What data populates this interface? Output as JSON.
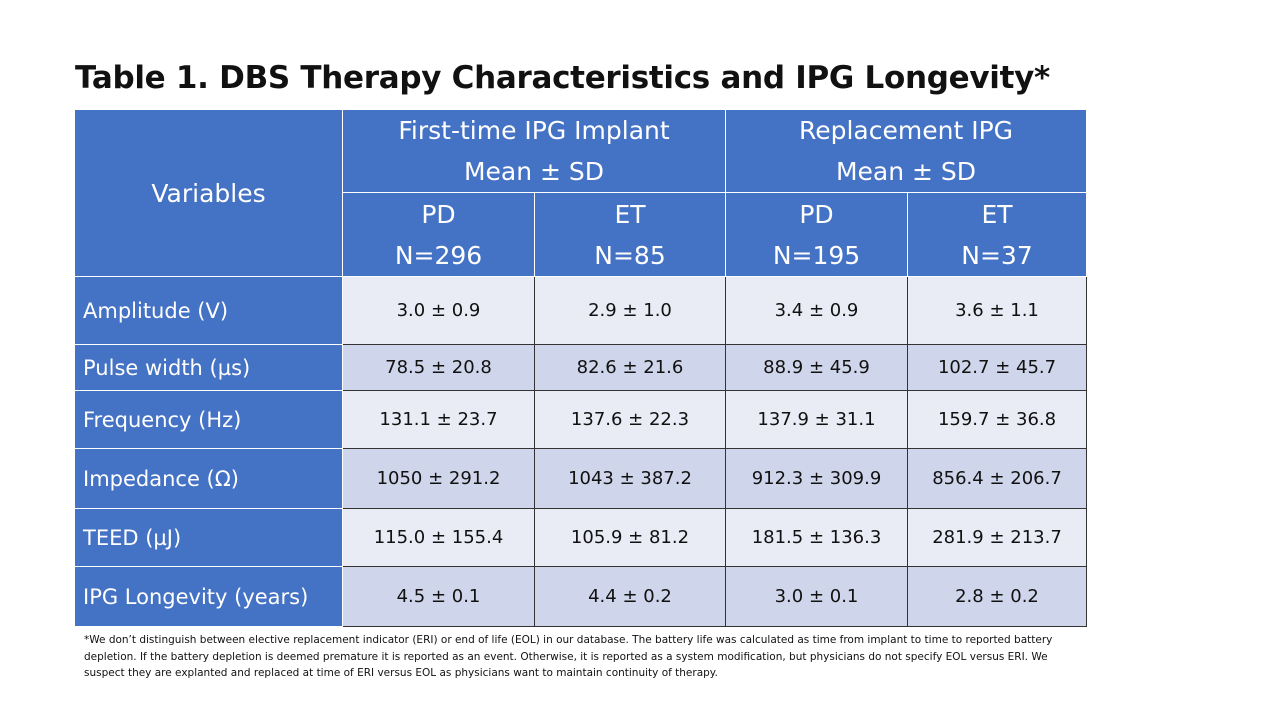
{
  "title": "Table 1. DBS Therapy Characteristics and IPG Longevity*",
  "table": {
    "variables_header": "Variables",
    "groups": [
      {
        "line1": "First-time IPG Implant",
        "line2": "Mean ± SD"
      },
      {
        "line1": "Replacement IPG",
        "line2": "Mean ± SD"
      }
    ],
    "subgroups": [
      {
        "name": "PD",
        "n": "N=296"
      },
      {
        "name": "ET",
        "n": "N=85"
      },
      {
        "name": "PD",
        "n": "N=195"
      },
      {
        "name": "ET",
        "n": "N=37"
      }
    ],
    "rows": [
      {
        "label": "Amplitude (V)",
        "values": [
          "3.0 ± 0.9",
          "2.9 ± 1.0",
          "3.4 ± 0.9",
          "3.6 ± 1.1"
        ]
      },
      {
        "label": "Pulse width (µs)",
        "values": [
          "78.5 ± 20.8",
          "82.6 ± 21.6",
          "88.9 ± 45.9",
          "102.7 ± 45.7"
        ]
      },
      {
        "label": "Frequency (Hz)",
        "values": [
          "131.1 ± 23.7",
          "137.6 ± 22.3",
          "137.9 ± 31.1",
          "159.7 ± 36.8"
        ]
      },
      {
        "label": "Impedance (Ω)",
        "values": [
          "1050 ± 291.2",
          "1043 ± 387.2",
          "912.3 ± 309.9",
          "856.4 ± 206.7"
        ]
      },
      {
        "label": "TEED (µJ)",
        "values": [
          "115.0 ± 155.4",
          "105.9 ± 81.2",
          "181.5 ± 136.3",
          "281.9 ± 213.7"
        ]
      },
      {
        "label": "IPG Longevity (years)",
        "values": [
          "4.5 ± 0.1",
          "4.4 ± 0.2",
          "3.0 ± 0.1",
          "2.8 ± 0.2"
        ]
      }
    ]
  },
  "footnote": "*We don’t distinguish between elective replacement indicator (ERI) or end of life (EOL) in our database.  The battery life was calculated as time from implant to time to reported battery depletion.  If the battery depletion is deemed premature it is reported as an event. Otherwise, it is reported as a system modification,  but physicians do not specify EOL versus ERI.  We suspect they are explanted and replaced at time of ERI versus EOL as physicians want to maintain continuity of therapy.",
  "colors": {
    "header_blue": "#4472c4",
    "row_light": "#e9ebf5",
    "row_dark": "#cfd5ea"
  }
}
